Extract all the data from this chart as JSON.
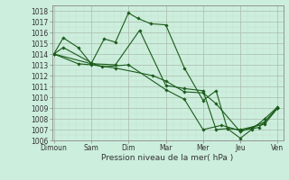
{
  "xlabel": "Pression niveau de la mer( hPa )",
  "bg_color": "#cceedd",
  "grid_color_major": "#aaccbb",
  "grid_color_minor": "#ddeee8",
  "line_color": "#1a5c1a",
  "ylim": [
    1006,
    1018.5
  ],
  "ytick_min": 1006,
  "ytick_max": 1018,
  "x_labels": [
    "Dimoun",
    "Sam",
    "Dim",
    "Mar",
    "Mer",
    "Jeu",
    "Ven"
  ],
  "x_positions": [
    0,
    1,
    2,
    3,
    4,
    5,
    6
  ],
  "series": [
    {
      "x": [
        0.0,
        0.25,
        0.65,
        1.0,
        1.35,
        1.65,
        2.0,
        2.25,
        2.6,
        3.0,
        3.5,
        4.0,
        4.35,
        4.65,
        5.0,
        5.3,
        5.65,
        6.0
      ],
      "y": [
        1014.0,
        1015.5,
        1014.6,
        1013.1,
        1015.4,
        1015.1,
        1017.8,
        1017.3,
        1016.8,
        1016.7,
        1012.7,
        1009.7,
        1010.6,
        1007.1,
        1006.2,
        1007.0,
        1008.0,
        1009.1
      ]
    },
    {
      "x": [
        0.0,
        1.0,
        1.65,
        2.3,
        3.0,
        3.5,
        4.0,
        4.35,
        4.65,
        5.0,
        5.65,
        6.0
      ],
      "y": [
        1014.0,
        1013.1,
        1013.0,
        1016.2,
        1011.1,
        1010.8,
        1010.6,
        1007.0,
        1007.1,
        1007.0,
        1007.5,
        1009.0
      ]
    },
    {
      "x": [
        0.0,
        0.65,
        1.0,
        1.65,
        2.65,
        3.0,
        3.5,
        4.0,
        4.35,
        5.0,
        5.3,
        5.65,
        6.0
      ],
      "y": [
        1014.0,
        1013.1,
        1013.0,
        1012.7,
        1012.0,
        1011.5,
        1010.5,
        1010.4,
        1009.4,
        1006.8,
        1007.2,
        1007.7,
        1009.0
      ]
    },
    {
      "x": [
        0.0,
        0.25,
        1.0,
        1.3,
        2.0,
        3.0,
        3.5,
        4.0,
        4.5,
        5.0,
        5.5,
        6.0
      ],
      "y": [
        1014.0,
        1014.6,
        1013.2,
        1012.8,
        1013.0,
        1010.7,
        1009.8,
        1007.0,
        1007.4,
        1006.9,
        1007.2,
        1009.0
      ]
    }
  ]
}
